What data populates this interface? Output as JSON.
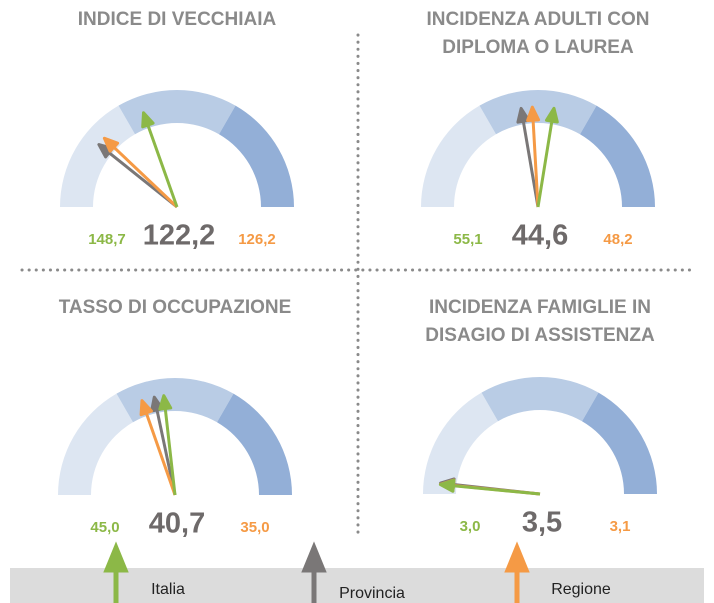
{
  "chart_data": [
    {
      "type": "gauge",
      "title": [
        "INDICE DI VECCHIAIA"
      ],
      "values": [
        148.7,
        122.2,
        126.2
      ],
      "value_labels": [
        "148,7",
        "122,2",
        "126,2"
      ],
      "ylim": [
        90,
        240
      ]
    },
    {
      "type": "gauge",
      "title": [
        "INCIDENZA ADULTI CON",
        "DIPLOMA O LAUREA"
      ],
      "values": [
        55.1,
        44.6,
        48.2
      ],
      "value_labels": [
        "55,1",
        "44,6",
        "48,2"
      ],
      "ylim": [
        0,
        100
      ]
    },
    {
      "type": "gauge",
      "title": [
        "TASSO DI OCCUPAZIONE"
      ],
      "values": [
        45.0,
        40.7,
        35.0
      ],
      "value_labels": [
        "45,0",
        "40,7",
        "35,0"
      ],
      "ylim": [
        -20,
        120
      ]
    },
    {
      "type": "gauge",
      "title": [
        "INCIDENZA FAMIGLIE IN",
        "DISAGIO DI ASSISTENZA"
      ],
      "values": [
        3.0,
        3.5,
        3.1
      ],
      "value_labels": [
        "3,0",
        "3,5",
        "3,1"
      ],
      "ylim": [
        0,
        100
      ]
    }
  ],
  "legend": [
    {
      "name": "Italia",
      "color": "#8cb847"
    },
    {
      "name": "Provincia",
      "color": "#7a7777"
    },
    {
      "name": "Regione",
      "color": "#f59a45"
    }
  ]
}
